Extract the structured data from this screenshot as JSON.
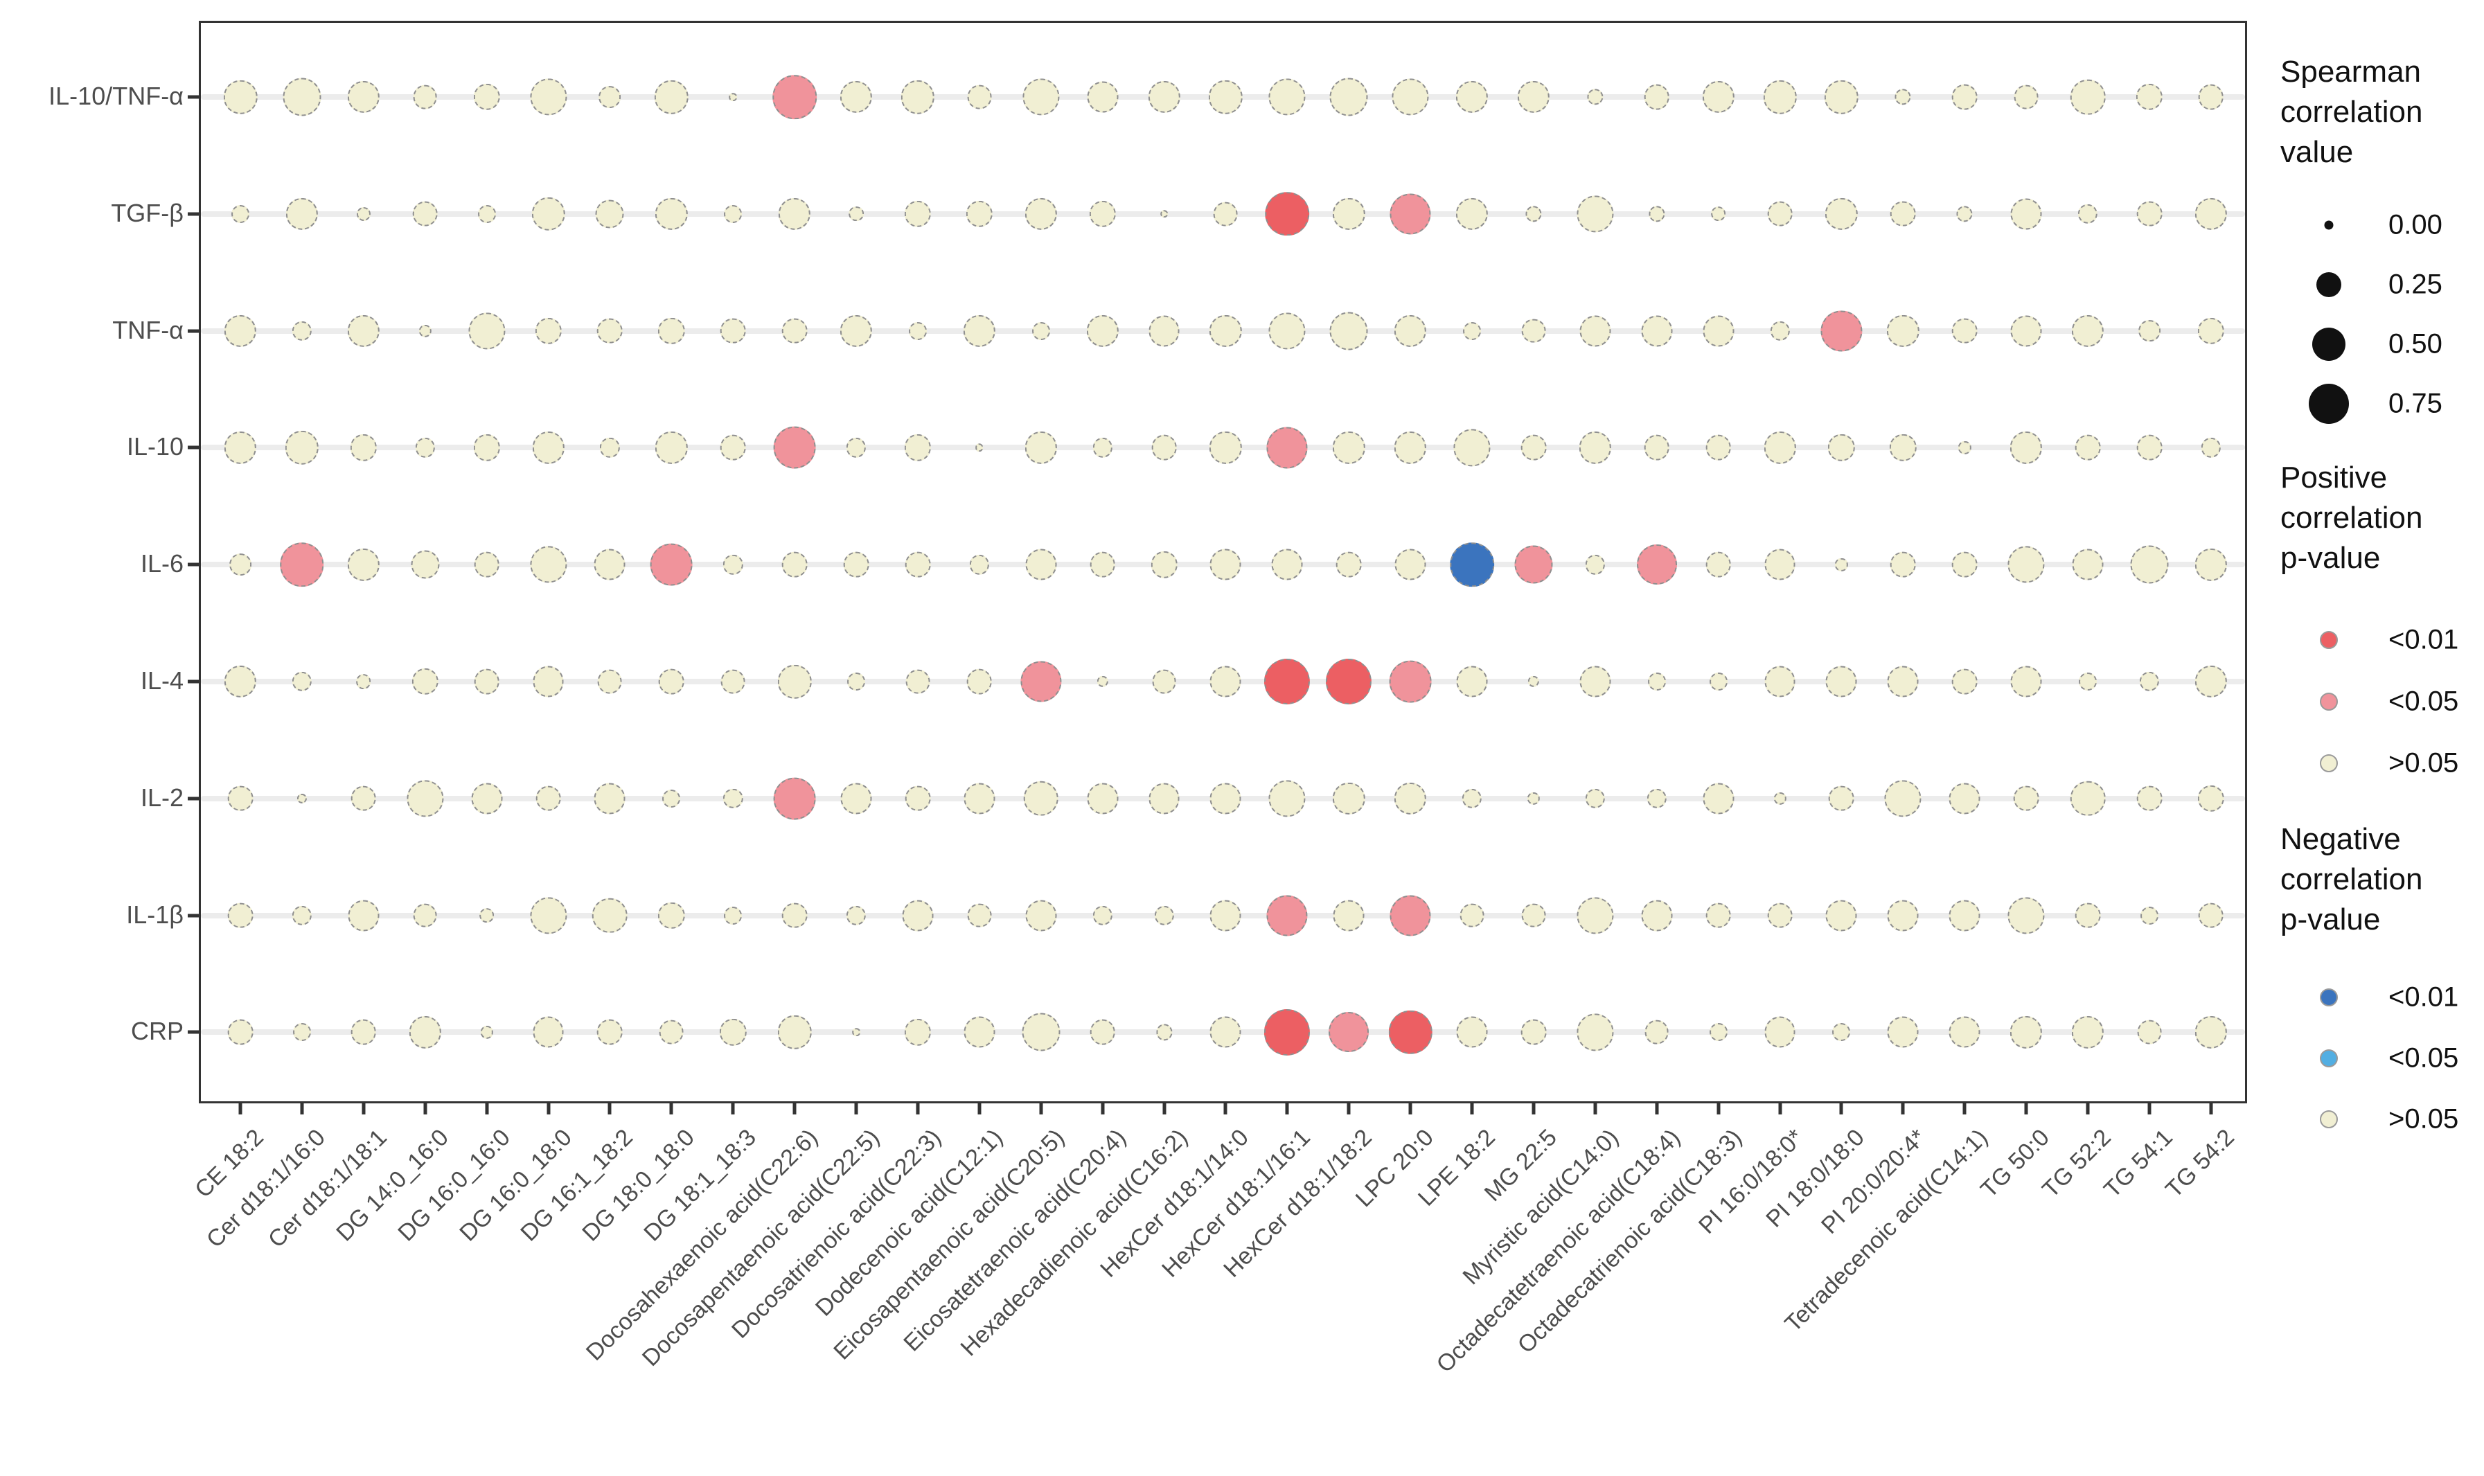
{
  "legend": {
    "size_title": "Spearman\ncorrelation\nvalue",
    "size_entries": [
      {
        "label": "0.00",
        "diameter": 13
      },
      {
        "label": "0.25",
        "diameter": 36
      },
      {
        "label": "0.50",
        "diameter": 48
      },
      {
        "label": "0.75",
        "diameter": 58
      }
    ],
    "positive_title": "Positive\ncorrelation\np-value",
    "positive_entries": [
      {
        "label": "<0.01",
        "color": "#EC5F63"
      },
      {
        "label": "<0.05",
        "color": "#F0939B"
      },
      {
        "label": ">0.05",
        "color": "#F1EFD3"
      }
    ],
    "negative_title": "Negative\ncorrelation\np-value",
    "negative_entries": [
      {
        "label": "<0.01",
        "color": "#3B74BE"
      },
      {
        "label": "<0.05",
        "color": "#52AEE2"
      },
      {
        "label": ">0.05",
        "color": "#F1EFD3"
      }
    ]
  },
  "chart_data": {
    "type": "scatter",
    "subtype": "bubble-correlation-matrix",
    "size_meaning": "absolute Spearman correlation value (legend: 0.00, 0.25, 0.50, 0.75)",
    "color_meaning": "sign of correlation and p-value category",
    "p_colors": {
      "pos_lt_0.01": "#EC5F63",
      "pos_lt_0.05": "#F0939B",
      "neg_lt_0.01": "#3B74BE",
      "neg_lt_0.05": "#52AEE2",
      "ns_gt_0.05": "#F1EFD3"
    },
    "p_codes": {
      "p01": "pos_lt_0.01",
      "p05": "pos_lt_0.05",
      "n01": "neg_lt_0.01",
      "n05": "neg_lt_0.05",
      "ns": "ns_gt_0.05"
    },
    "x_categories": [
      "CE 18:2",
      "Cer d18:1/16:0",
      "Cer d18:1/18:1",
      "DG 14:0_16:0",
      "DG 16:0_16:0",
      "DG 16:0_18:0",
      "DG 16:1_18:2",
      "DG 18:0_18:0",
      "DG 18:1_18:3",
      "Docosahexaenoic acid(C22:6)",
      "Docosapentaenoic acid(C22:5)",
      "Docosatrienoic acid(C22:3)",
      "Dodecenoic acid(C12:1)",
      "Eicosapentaenoic acid(C20:5)",
      "Eicosatetraenoic acid(C20:4)",
      "Hexadecadienoic acid(C16:2)",
      "HexCer d18:1/14:0",
      "HexCer d18:1/16:1",
      "HexCer d18:1/18:2",
      "LPC 20:0",
      "LPE 18:2",
      "MG 22:5",
      "Myristic acid(C14:0)",
      "Octadecatetraenoic acid(C18:4)",
      "Octadecatrienoic acid(C18:3)",
      "PI 16:0/18:0*",
      "PI 18:0/18:0",
      "PI 20:0/20:4*",
      "Tetradecenoic acid(C14:1)",
      "TG 50:0",
      "TG 52:2",
      "TG 54:1",
      "TG 54:2"
    ],
    "y_categories": [
      "IL-10/TNF-α",
      "TGF-β",
      "TNF-α",
      "IL-10",
      "IL-6",
      "IL-4",
      "IL-2",
      "IL-1β",
      "CRP"
    ],
    "rows": [
      {
        "y": "IL-10/TNF-α",
        "r": [
          0.35,
          0.45,
          0.32,
          0.18,
          0.22,
          0.42,
          0.15,
          0.35,
          0.02,
          0.6,
          0.32,
          0.35,
          0.18,
          0.42,
          0.3,
          0.32,
          0.35,
          0.42,
          0.45,
          0.42,
          0.32,
          0.32,
          0.08,
          0.2,
          0.32,
          0.35,
          0.35,
          0.08,
          0.2,
          0.18,
          0.38,
          0.22,
          0.2
        ],
        "p": [
          "ns",
          "ns",
          "ns",
          "ns",
          "ns",
          "ns",
          "ns",
          "ns",
          "ns",
          "p05",
          "ns",
          "ns",
          "ns",
          "ns",
          "ns",
          "ns",
          "ns",
          "ns",
          "ns",
          "ns",
          "ns",
          "ns",
          "ns",
          "ns",
          "ns",
          "ns",
          "ns",
          "ns",
          "ns",
          "ns",
          "ns",
          "ns",
          "ns"
        ]
      },
      {
        "y": "TGF-β",
        "r": [
          0.1,
          0.32,
          0.06,
          0.2,
          0.1,
          0.35,
          0.25,
          0.32,
          0.1,
          0.32,
          0.07,
          0.22,
          0.22,
          0.32,
          0.22,
          0.02,
          0.18,
          0.6,
          0.32,
          0.52,
          0.32,
          0.08,
          0.42,
          0.08,
          0.07,
          0.2,
          0.32,
          0.2,
          0.08,
          0.3,
          0.12,
          0.2,
          0.32
        ],
        "p": [
          "ns",
          "ns",
          "ns",
          "ns",
          "ns",
          "ns",
          "ns",
          "ns",
          "ns",
          "ns",
          "ns",
          "ns",
          "ns",
          "ns",
          "ns",
          "ns",
          "ns",
          "p01",
          "ns",
          "p05",
          "ns",
          "ns",
          "ns",
          "ns",
          "ns",
          "ns",
          "ns",
          "ns",
          "ns",
          "ns",
          "ns",
          "ns",
          "ns"
        ]
      },
      {
        "y": "TNF-α",
        "r": [
          0.32,
          0.12,
          0.32,
          0.05,
          0.42,
          0.22,
          0.2,
          0.22,
          0.2,
          0.2,
          0.32,
          0.1,
          0.32,
          0.1,
          0.32,
          0.3,
          0.32,
          0.42,
          0.45,
          0.32,
          0.1,
          0.18,
          0.3,
          0.3,
          0.3,
          0.12,
          0.52,
          0.32,
          0.2,
          0.3,
          0.32,
          0.15,
          0.22
        ],
        "p": [
          "ns",
          "ns",
          "ns",
          "ns",
          "ns",
          "ns",
          "ns",
          "ns",
          "ns",
          "ns",
          "ns",
          "ns",
          "ns",
          "ns",
          "ns",
          "ns",
          "ns",
          "ns",
          "ns",
          "ns",
          "ns",
          "ns",
          "ns",
          "ns",
          "ns",
          "ns",
          "p05",
          "ns",
          "ns",
          "ns",
          "ns",
          "ns",
          "ns"
        ]
      },
      {
        "y": "IL-10",
        "r": [
          0.32,
          0.35,
          0.22,
          0.12,
          0.22,
          0.32,
          0.12,
          0.32,
          0.2,
          0.55,
          0.12,
          0.22,
          0.02,
          0.32,
          0.12,
          0.2,
          0.32,
          0.52,
          0.32,
          0.32,
          0.42,
          0.2,
          0.32,
          0.2,
          0.2,
          0.32,
          0.22,
          0.22,
          0.05,
          0.32,
          0.2,
          0.2,
          0.12
        ],
        "p": [
          "ns",
          "ns",
          "ns",
          "ns",
          "ns",
          "ns",
          "ns",
          "ns",
          "ns",
          "p05",
          "ns",
          "ns",
          "ns",
          "ns",
          "ns",
          "ns",
          "ns",
          "p05",
          "ns",
          "ns",
          "ns",
          "ns",
          "ns",
          "ns",
          "ns",
          "ns",
          "ns",
          "ns",
          "ns",
          "ns",
          "ns",
          "ns",
          "ns"
        ]
      },
      {
        "y": "IL-6",
        "r": [
          0.15,
          0.6,
          0.32,
          0.25,
          0.2,
          0.42,
          0.3,
          0.55,
          0.12,
          0.2,
          0.2,
          0.2,
          0.12,
          0.3,
          0.2,
          0.22,
          0.3,
          0.3,
          0.2,
          0.3,
          0.6,
          0.45,
          0.12,
          0.5,
          0.2,
          0.3,
          0.05,
          0.2,
          0.2,
          0.42,
          0.3,
          0.45,
          0.32
        ],
        "p": [
          "ns",
          "p05",
          "ns",
          "ns",
          "ns",
          "ns",
          "ns",
          "p05",
          "ns",
          "ns",
          "ns",
          "ns",
          "ns",
          "ns",
          "ns",
          "ns",
          "ns",
          "ns",
          "ns",
          "ns",
          "n01",
          "p05",
          "ns",
          "p05",
          "ns",
          "ns",
          "ns",
          "ns",
          "ns",
          "ns",
          "ns",
          "ns",
          "ns"
        ]
      },
      {
        "y": "IL-4",
        "r": [
          0.32,
          0.12,
          0.07,
          0.22,
          0.2,
          0.3,
          0.18,
          0.2,
          0.18,
          0.35,
          0.1,
          0.18,
          0.2,
          0.52,
          0.04,
          0.18,
          0.3,
          0.65,
          0.65,
          0.55,
          0.3,
          0.04,
          0.3,
          0.1,
          0.1,
          0.3,
          0.3,
          0.3,
          0.2,
          0.3,
          0.1,
          0.12,
          0.32
        ],
        "p": [
          "ns",
          "ns",
          "ns",
          "ns",
          "ns",
          "ns",
          "ns",
          "ns",
          "ns",
          "ns",
          "ns",
          "ns",
          "ns",
          "p05",
          "ns",
          "ns",
          "ns",
          "p01",
          "p01",
          "p05",
          "ns",
          "ns",
          "ns",
          "ns",
          "ns",
          "ns",
          "ns",
          "ns",
          "ns",
          "ns",
          "ns",
          "ns",
          "ns"
        ]
      },
      {
        "y": "IL-2",
        "r": [
          0.2,
          0.03,
          0.2,
          0.42,
          0.3,
          0.2,
          0.3,
          0.1,
          0.12,
          0.55,
          0.3,
          0.2,
          0.3,
          0.38,
          0.3,
          0.3,
          0.3,
          0.42,
          0.32,
          0.32,
          0.12,
          0.05,
          0.12,
          0.12,
          0.3,
          0.05,
          0.2,
          0.42,
          0.3,
          0.2,
          0.38,
          0.2,
          0.22
        ],
        "p": [
          "ns",
          "ns",
          "ns",
          "ns",
          "ns",
          "ns",
          "ns",
          "ns",
          "ns",
          "p05",
          "ns",
          "ns",
          "ns",
          "ns",
          "ns",
          "ns",
          "ns",
          "ns",
          "ns",
          "ns",
          "ns",
          "ns",
          "ns",
          "ns",
          "ns",
          "ns",
          "ns",
          "ns",
          "ns",
          "ns",
          "ns",
          "ns",
          "ns"
        ]
      },
      {
        "y": "IL-1β",
        "r": [
          0.2,
          0.12,
          0.3,
          0.18,
          0.07,
          0.42,
          0.38,
          0.22,
          0.1,
          0.2,
          0.12,
          0.3,
          0.18,
          0.3,
          0.12,
          0.12,
          0.3,
          0.52,
          0.3,
          0.52,
          0.18,
          0.18,
          0.42,
          0.3,
          0.2,
          0.2,
          0.3,
          0.3,
          0.3,
          0.42,
          0.2,
          0.1,
          0.2
        ],
        "p": [
          "ns",
          "ns",
          "ns",
          "ns",
          "ns",
          "ns",
          "ns",
          "ns",
          "ns",
          "ns",
          "ns",
          "ns",
          "ns",
          "ns",
          "ns",
          "ns",
          "ns",
          "p05",
          "ns",
          "p05",
          "ns",
          "ns",
          "ns",
          "ns",
          "ns",
          "ns",
          "ns",
          "ns",
          "ns",
          "ns",
          "ns",
          "ns",
          "ns"
        ]
      },
      {
        "y": "CRP",
        "r": [
          0.2,
          0.1,
          0.2,
          0.32,
          0.05,
          0.3,
          0.2,
          0.18,
          0.22,
          0.35,
          0.02,
          0.22,
          0.3,
          0.45,
          0.2,
          0.08,
          0.3,
          0.65,
          0.5,
          0.58,
          0.3,
          0.2,
          0.42,
          0.18,
          0.1,
          0.3,
          0.1,
          0.3,
          0.3,
          0.32,
          0.32,
          0.18,
          0.32
        ],
        "p": [
          "ns",
          "ns",
          "ns",
          "ns",
          "ns",
          "ns",
          "ns",
          "ns",
          "ns",
          "ns",
          "ns",
          "ns",
          "ns",
          "ns",
          "ns",
          "ns",
          "ns",
          "p01",
          "p05",
          "p01",
          "ns",
          "ns",
          "ns",
          "ns",
          "ns",
          "ns",
          "ns",
          "ns",
          "ns",
          "ns",
          "ns",
          "ns",
          "ns"
        ]
      }
    ],
    "title": "",
    "xlabel": "",
    "ylabel": "",
    "grid": "horizontal light-gray row lines only",
    "legend_position": "right"
  }
}
